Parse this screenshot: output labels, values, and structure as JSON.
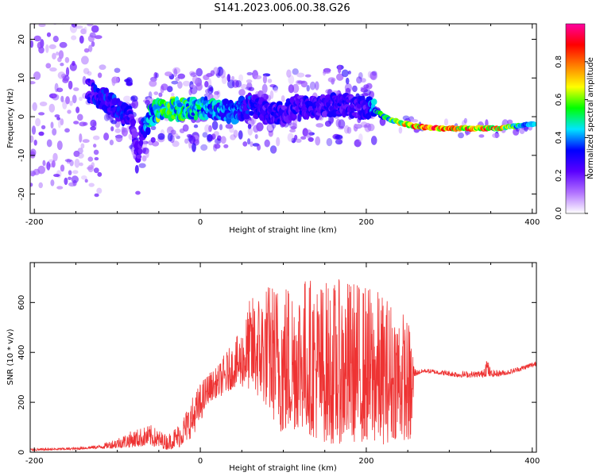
{
  "title": "S141.2023.006.00.38.G26",
  "chart_data": [
    {
      "type": "heatmap",
      "description_of_panel": "spectrogram",
      "xlabel": "Height of straight line (km)",
      "ylabel": "Frequency (Hz)",
      "xlim": [
        -205,
        405
      ],
      "ylim": [
        -25,
        24
      ],
      "xticks": [
        -200,
        0,
        200,
        400
      ],
      "yticks": [
        -20,
        -10,
        0,
        10,
        20
      ],
      "colorbar": {
        "label": "Normalized spectral amplitude",
        "range": [
          0.0,
          1.0
        ],
        "ticks": [
          0.0,
          0.2,
          0.4,
          0.6,
          0.8
        ],
        "tick_labels": [
          "0.0",
          "0.2",
          "0.4",
          "0.6",
          "0.8"
        ],
        "colormap": [
          "#ffffff",
          "#b070ff",
          "#5a00ff",
          "#0000ff",
          "#00e5ff",
          "#00ff00",
          "#ffff00",
          "#ff8000",
          "#ff0000",
          "#ff00a0"
        ]
      },
      "ridge": {
        "x": [
          -135,
          -120,
          -105,
          -95,
          -85,
          -80,
          -75,
          -70,
          -65,
          -60,
          -55,
          -50,
          -40,
          -20,
          0,
          20,
          40,
          60,
          80,
          100,
          120,
          140,
          160,
          180,
          200,
          210,
          220,
          240,
          260,
          280,
          300,
          320,
          340,
          360,
          380,
          400
        ],
        "freq": [
          7,
          5,
          3,
          1,
          0.5,
          -4,
          -10,
          -3,
          -2,
          0,
          1,
          2,
          2,
          2,
          2,
          2,
          1,
          3,
          1,
          1,
          3,
          2,
          3,
          3,
          2,
          2,
          0,
          -1.5,
          -2.5,
          -3,
          -3,
          -3,
          -3,
          -3,
          -2.5,
          -2
        ],
        "amp": [
          0.3,
          0.35,
          0.35,
          0.35,
          0.3,
          0.25,
          0.3,
          0.3,
          0.4,
          0.5,
          0.55,
          0.6,
          0.6,
          0.55,
          0.5,
          0.45,
          0.4,
          0.35,
          0.3,
          0.3,
          0.3,
          0.3,
          0.3,
          0.3,
          0.3,
          0.45,
          0.55,
          0.7,
          0.85,
          0.9,
          0.8,
          0.85,
          0.9,
          0.8,
          0.6,
          0.5
        ]
      }
    },
    {
      "type": "line",
      "xlabel": "Height of straight line (km)",
      "ylabel": "SNR (10 * v/v)",
      "xlim": [
        -205,
        405
      ],
      "ylim": [
        0,
        760
      ],
      "xticks": [
        -200,
        0,
        200,
        400
      ],
      "yticks": [
        0,
        200,
        400,
        600
      ],
      "color": "#ee3333",
      "envelope": {
        "x": [
          -205,
          -150,
          -120,
          -100,
          -80,
          -60,
          -40,
          -25,
          -10,
          0,
          10,
          20,
          30,
          40,
          50,
          60,
          80,
          100,
          120,
          140,
          160,
          180,
          200,
          220,
          240,
          255,
          258,
          262,
          270,
          290,
          310,
          330,
          340,
          345,
          350,
          370,
          390,
          405
        ],
        "low": [
          5,
          10,
          15,
          15,
          20,
          25,
          10,
          20,
          60,
          120,
          200,
          220,
          230,
          260,
          260,
          250,
          180,
          60,
          100,
          50,
          30,
          40,
          40,
          30,
          60,
          30,
          300,
          310,
          320,
          310,
          300,
          300,
          300,
          305,
          300,
          310,
          330,
          345
        ],
        "high": [
          15,
          20,
          30,
          60,
          90,
          110,
          70,
          120,
          220,
          280,
          320,
          340,
          400,
          440,
          500,
          620,
          680,
          700,
          720,
          700,
          690,
          700,
          680,
          640,
          600,
          500,
          340,
          330,
          335,
          330,
          325,
          325,
          330,
          390,
          330,
          330,
          350,
          370
        ]
      }
    }
  ]
}
